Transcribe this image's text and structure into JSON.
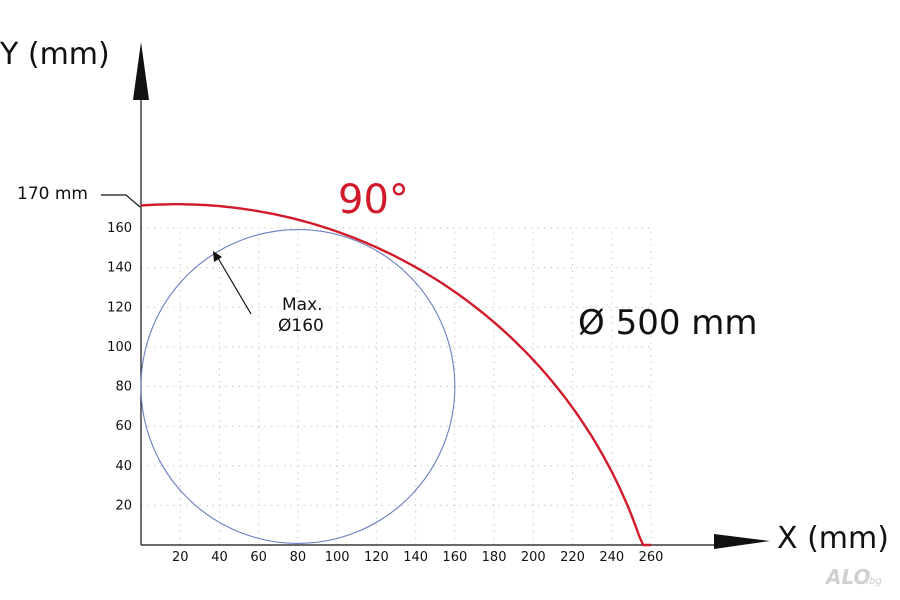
{
  "axes": {
    "y_title": "Y (mm)",
    "x_title": "X (mm)",
    "x_ticks": [
      "20",
      "40",
      "60",
      "80",
      "100",
      "120",
      "140",
      "160",
      "180",
      "200",
      "220",
      "240",
      "260"
    ],
    "y_ticks": [
      "20",
      "40",
      "60",
      "80",
      "100",
      "120",
      "140",
      "160"
    ],
    "grid": "dotted"
  },
  "labels": {
    "height_marker": "170 mm",
    "angle": "90°",
    "diameter": "Ø 500 mm",
    "max_label_line1": "Max.",
    "max_label_line2": "Ø160"
  },
  "shapes": {
    "workpiece_circle": {
      "center_mm": [
        80,
        80
      ],
      "diameter_mm": 160
    },
    "envelope_curve": {
      "diameter_mm": 500,
      "max_height_mm": 170,
      "x_end_mm": 260
    }
  },
  "colors": {
    "envelope": "#d11a2a",
    "circle": "#6a7fc0",
    "axes": "#111111",
    "grid": "#c8c8c8"
  },
  "watermark": {
    "text": "ALO",
    "suffix": ".bg"
  }
}
